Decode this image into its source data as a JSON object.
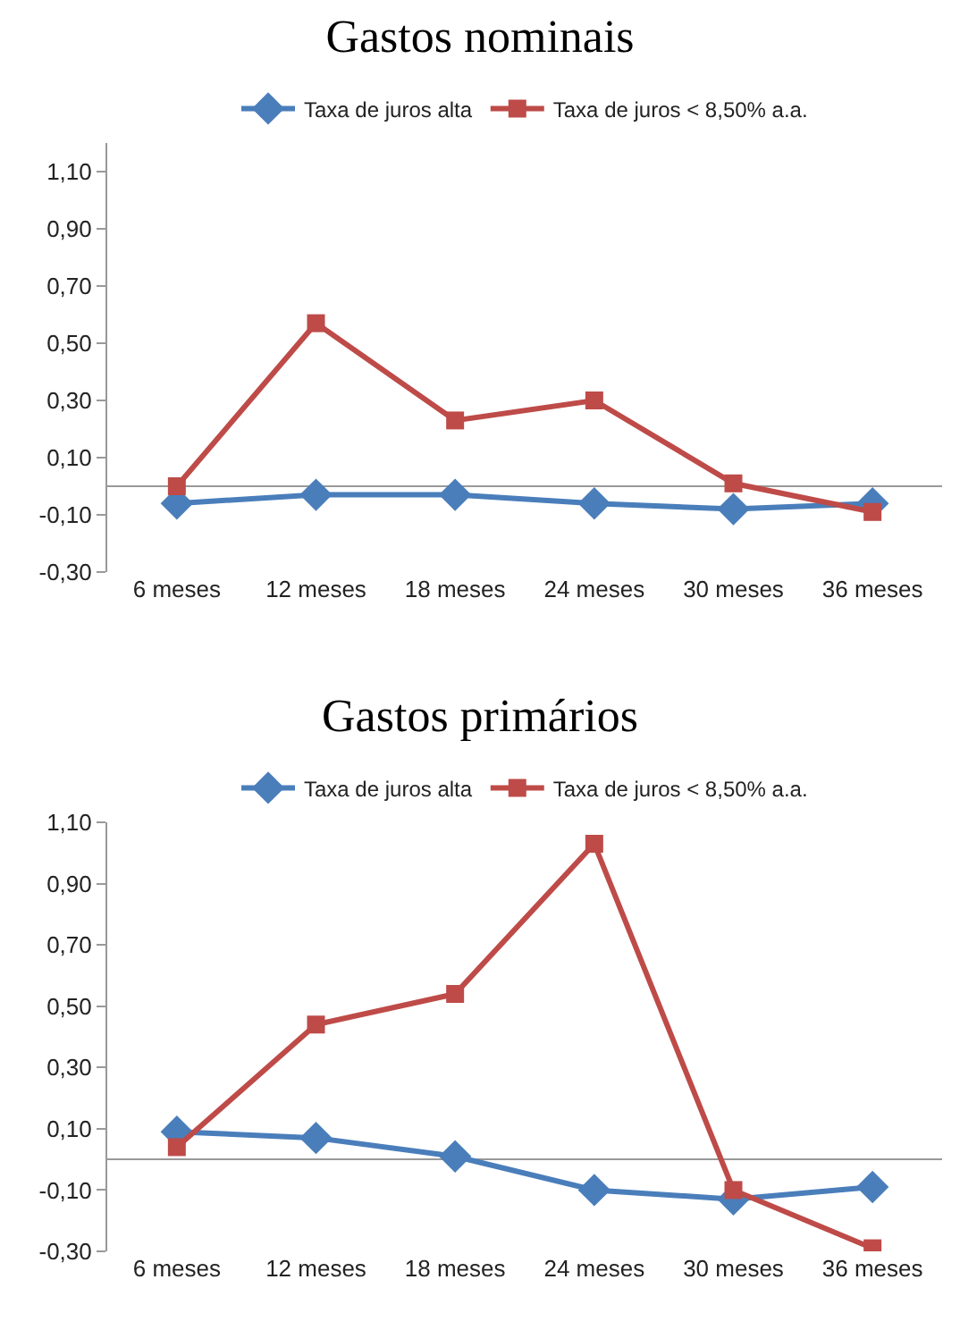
{
  "chart_data": [
    {
      "type": "line",
      "title": "Gastos nominais",
      "categories": [
        "6 meses",
        "12 meses",
        "18 meses",
        "24 meses",
        "30 meses",
        "36 meses"
      ],
      "series": [
        {
          "name": "Taxa de juros alta",
          "color": "#4a7ebb",
          "marker": "diamond",
          "values": [
            -0.06,
            -0.03,
            -0.03,
            -0.06,
            -0.08,
            -0.06
          ]
        },
        {
          "name": "Taxa de juros < 8,50% a.a.",
          "color": "#be4b48",
          "marker": "square",
          "values": [
            0.0,
            0.57,
            0.23,
            0.3,
            0.01,
            -0.09
          ]
        }
      ],
      "ylim": [
        -0.3,
        1.2
      ],
      "yticks": [
        {
          "value": -0.3,
          "label": "-0,30"
        },
        {
          "value": -0.1,
          "label": "-0,10"
        },
        {
          "value": 0.1,
          "label": "0,10"
        },
        {
          "value": 0.3,
          "label": "0,30"
        },
        {
          "value": 0.5,
          "label": "0,50"
        },
        {
          "value": 0.7,
          "label": "0,70"
        },
        {
          "value": 0.9,
          "label": "0,90"
        },
        {
          "value": 1.1,
          "label": "1,10"
        }
      ],
      "grid": false,
      "legend": "top",
      "line_style": "solid"
    },
    {
      "type": "line",
      "title": "Gastos primários",
      "categories": [
        "6 meses",
        "12 meses",
        "18 meses",
        "24 meses",
        "30 meses",
        "36 meses"
      ],
      "series": [
        {
          "name": "Taxa de juros alta",
          "color": "#4a7ebb",
          "marker": "diamond",
          "values": [
            0.09,
            0.07,
            0.01,
            -0.1,
            -0.13,
            -0.09
          ]
        },
        {
          "name": "Taxa de juros < 8,50% a.a.",
          "color": "#be4b48",
          "marker": "square",
          "values": [
            0.04,
            0.44,
            0.54,
            1.03,
            -0.1,
            -0.29
          ]
        }
      ],
      "ylim": [
        -0.3,
        1.1
      ],
      "yticks": [
        {
          "value": -0.3,
          "label": "-0,30"
        },
        {
          "value": -0.1,
          "label": "-0,10"
        },
        {
          "value": 0.1,
          "label": "0,10"
        },
        {
          "value": 0.3,
          "label": "0,30"
        },
        {
          "value": 0.5,
          "label": "0,50"
        },
        {
          "value": 0.7,
          "label": "0,70"
        },
        {
          "value": 0.9,
          "label": "0,90"
        },
        {
          "value": 1.1,
          "label": "1,10"
        }
      ],
      "grid": false,
      "legend": "top",
      "line_style": "solid"
    }
  ]
}
